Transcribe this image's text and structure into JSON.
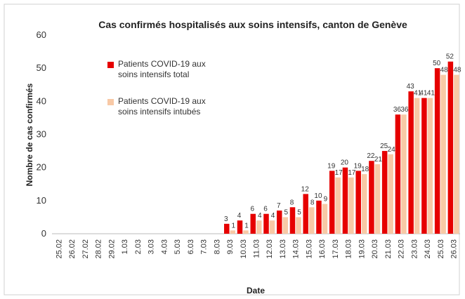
{
  "chart_data": {
    "type": "bar",
    "title": "Cas confirmés hospitalisés aux soins intensifs, canton de Genève",
    "x_label": "Date",
    "y_label": "Nombre de cas confirmés",
    "categories": [
      "25.02",
      "26.02",
      "27.02",
      "28.02",
      "29.02",
      "1.03",
      "2.03",
      "3.03",
      "4.03",
      "5.03",
      "6.03",
      "7.03",
      "8.03",
      "9.03",
      "10.03",
      "11.03",
      "12.03",
      "13.03",
      "14.03",
      "15.03",
      "16.03",
      "17.03",
      "18.03",
      "19.03",
      "20.03",
      "21.03",
      "22.03",
      "23.03",
      "24.03",
      "25.03",
      "26.03"
    ],
    "series": [
      {
        "name": "Patients COVID-19 aux soins intensifs total",
        "color": "#e60000",
        "values": [
          0,
          0,
          0,
          0,
          0,
          0,
          0,
          0,
          0,
          0,
          0,
          0,
          0,
          3,
          4,
          6,
          6,
          7,
          8,
          12,
          10,
          19,
          20,
          19,
          22,
          25,
          36,
          43,
          41,
          50,
          52
        ]
      },
      {
        "name": "Patients COVID-19 aux soins intensifs intubés",
        "color": "#f8c9a6",
        "values": [
          0,
          0,
          0,
          0,
          0,
          0,
          0,
          0,
          0,
          0,
          0,
          0,
          0,
          1,
          1,
          4,
          4,
          5,
          5,
          8,
          9,
          17,
          17,
          18,
          21,
          24,
          36,
          41,
          41,
          48,
          48
        ]
      }
    ],
    "ylim": [
      0,
      60
    ],
    "yticks": [
      0,
      10,
      20,
      30,
      40,
      50,
      60
    ]
  }
}
